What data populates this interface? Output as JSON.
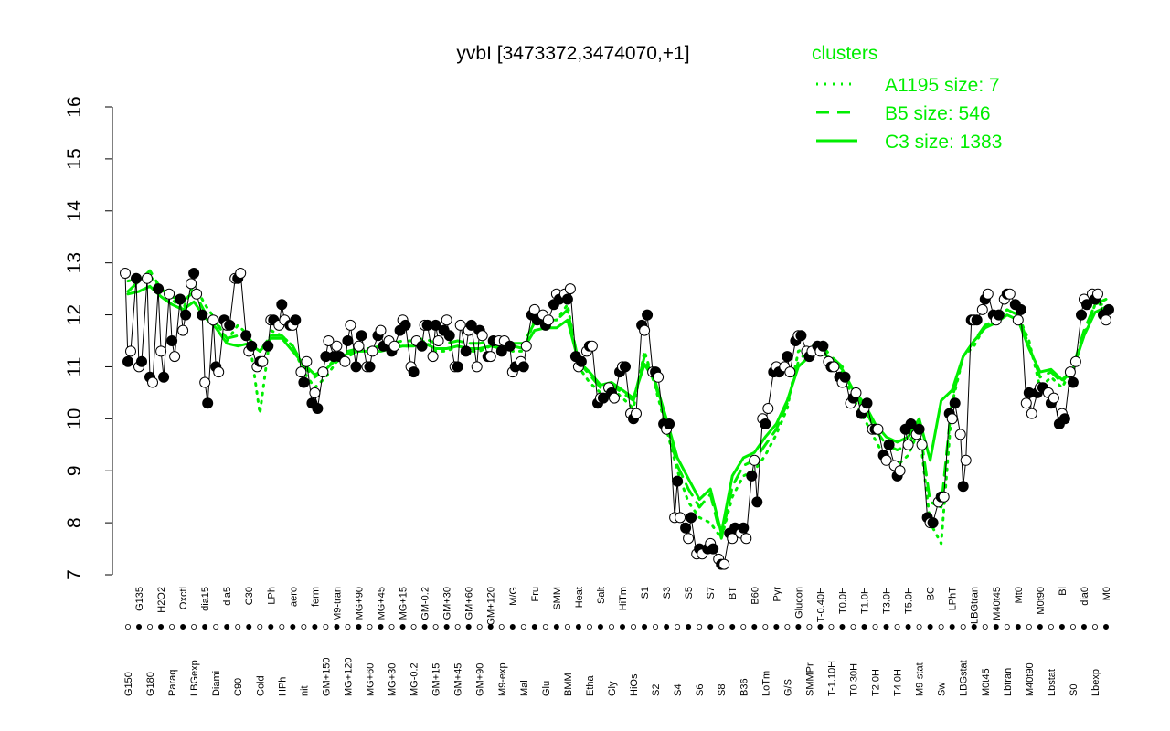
{
  "chart_data": {
    "type": "line",
    "title": "yvbI [3473372,3474070,+1]",
    "xlabel": "",
    "ylabel": "",
    "ylim": [
      7,
      16
    ],
    "y_ticks": [
      7,
      8,
      9,
      10,
      11,
      12,
      13,
      14,
      15,
      16
    ],
    "grid": false,
    "legend": {
      "title": "clusters",
      "placement": "top-right",
      "entries": [
        {
          "label": "A1195 size: 7",
          "style": "dotted"
        },
        {
          "label": "B5 size: 546",
          "style": "dashed"
        },
        {
          "label": "C3 size: 1383",
          "style": "solid"
        }
      ]
    },
    "x_tick_labels": [
      "G150",
      "G135",
      "G180",
      "H2O2",
      "Paraq",
      "Oxctl",
      "LBGexp",
      "dia15",
      "Diami",
      "dia5",
      "C90",
      "C30",
      "Cold",
      "LPh",
      "HPh",
      "aero",
      "nit",
      "ferm",
      "GM+150",
      "M9-tran",
      "MG+120",
      "MG+90",
      "MG+60",
      "MG+45",
      "MG+30",
      "MG+15",
      "MG-0.2",
      "GM-0.2",
      "GM+15",
      "GM+30",
      "GM+45",
      "GM+60",
      "GM+90",
      "GM+120",
      "M9-exp",
      "M/G",
      "Mal",
      "Fru",
      "Glu",
      "SMM",
      "BMM",
      "Heat",
      "Etha",
      "Salt",
      "Gly",
      "HiTm",
      "HiOs",
      "S1",
      "S2",
      "S3",
      "S4",
      "S5",
      "S6",
      "S7",
      "S8",
      "BT",
      "B36",
      "B60",
      "LoTm",
      "Pyr",
      "G/S",
      "Glucon",
      "SMMPr",
      "T-0.40H",
      "T-1.10H",
      "T0.0H",
      "T0.30H",
      "T1.0H",
      "T2.0H",
      "T3.0H",
      "T4.0H",
      "T5.0H",
      "M9-stat",
      "BC",
      "Sw",
      "LPhT",
      "LBGstat",
      "LBGtran",
      "M0t45",
      "M40t45",
      "Lbtran",
      "Mt0",
      "M40t90",
      "M0t90",
      "Lbstat",
      "Bl",
      "S0",
      "dia0",
      "Lbexp",
      "M0"
    ],
    "series": [
      {
        "name": "A1195 size: 7",
        "style": "dotted",
        "values": [
          12.65,
          12.7,
          12.75,
          12.5,
          12.3,
          12.1,
          12.6,
          12.2,
          11.9,
          11.5,
          11.8,
          11.6,
          10.1,
          11.7,
          11.6,
          11.4,
          10.9,
          10.6,
          10.8,
          11.1,
          11.2,
          11.3,
          11.3,
          11.3,
          11.4,
          11.4,
          11.4,
          11.5,
          11.3,
          11.3,
          11.4,
          11.3,
          11.3,
          11.4,
          11.4,
          11.3,
          11.3,
          11.9,
          11.9,
          11.9,
          12.2,
          11.0,
          10.7,
          10.5,
          10.6,
          10.4,
          10.2,
          11.3,
          10.6,
          9.8,
          9.0,
          8.4,
          8.1,
          8.0,
          7.7,
          8.5,
          8.9,
          9.0,
          9.3,
          9.7,
          10.2,
          11.3,
          11.4,
          11.4,
          11.1,
          10.9,
          10.4,
          10.0,
          9.6,
          9.2,
          9.1,
          9.3,
          9.8,
          8.0,
          7.6,
          10.3,
          11.2,
          11.4,
          11.8,
          11.9,
          12.1,
          12.0,
          11.5,
          10.6,
          10.8,
          10.6,
          11.0,
          11.6,
          12.2,
          12.2
        ]
      },
      {
        "name": "B5 size: 546",
        "style": "dashed",
        "values": [
          12.45,
          12.65,
          12.85,
          12.5,
          12.35,
          12.25,
          12.45,
          12.05,
          11.85,
          11.55,
          11.6,
          11.55,
          11.3,
          11.6,
          11.6,
          11.4,
          11.0,
          10.8,
          10.95,
          11.2,
          11.3,
          11.35,
          11.35,
          11.4,
          11.45,
          11.5,
          11.5,
          11.55,
          11.45,
          11.45,
          11.5,
          11.45,
          11.45,
          11.5,
          11.45,
          11.45,
          11.45,
          11.85,
          11.9,
          11.9,
          12.1,
          11.1,
          10.85,
          10.6,
          10.65,
          10.5,
          10.35,
          11.2,
          10.65,
          9.9,
          9.1,
          8.65,
          8.3,
          8.55,
          7.7,
          8.7,
          9.1,
          9.2,
          9.5,
          9.8,
          10.3,
          11.1,
          11.35,
          11.45,
          11.2,
          11.0,
          10.5,
          10.2,
          9.8,
          9.5,
          9.4,
          9.5,
          9.9,
          8.4,
          8.3,
          10.4,
          11.2,
          11.5,
          11.8,
          11.9,
          12.1,
          12.0,
          11.4,
          10.8,
          10.9,
          10.7,
          11.0,
          11.7,
          12.2,
          12.3
        ]
      },
      {
        "name": "C3 size: 1383",
        "style": "solid",
        "values": [
          12.4,
          12.45,
          12.55,
          12.35,
          12.2,
          12.1,
          12.25,
          11.95,
          11.75,
          11.45,
          11.4,
          11.45,
          11.3,
          11.55,
          11.55,
          11.3,
          11.05,
          10.85,
          10.95,
          11.15,
          11.25,
          11.3,
          11.3,
          11.3,
          11.35,
          11.4,
          11.4,
          11.45,
          11.35,
          11.35,
          11.4,
          11.35,
          11.35,
          11.4,
          11.35,
          11.4,
          11.35,
          11.7,
          11.75,
          11.75,
          11.9,
          11.1,
          10.9,
          10.65,
          10.7,
          10.55,
          10.4,
          11.05,
          10.7,
          10.0,
          9.25,
          8.85,
          8.45,
          8.65,
          7.8,
          8.9,
          9.25,
          9.35,
          9.65,
          9.9,
          10.35,
          11.0,
          11.2,
          11.3,
          11.15,
          10.95,
          10.55,
          10.3,
          9.9,
          9.65,
          9.55,
          9.65,
          10.0,
          9.2,
          10.35,
          10.55,
          11.2,
          11.5,
          11.75,
          11.85,
          12.0,
          11.9,
          11.35,
          10.9,
          10.95,
          10.75,
          10.95,
          11.6,
          12.05,
          12.15
        ]
      }
    ],
    "points": [
      [
        12.8,
        12.7,
        12.7,
        12.5,
        12.4,
        12.3,
        12.6,
        12.0,
        11.9,
        11.9,
        12.7,
        11.6,
        11.0,
        11.4,
        11.8,
        11.8,
        10.9,
        10.3,
        10.9,
        11.2,
        11.1,
        11.0,
        11.0,
        11.6,
        11.5,
        11.7,
        11.0,
        11.4,
        11.2,
        11.7,
        11.0,
        11.3,
        11.0,
        11.2,
        11.5,
        11.4,
        11.1,
        12.0,
        12.0,
        12.2,
        12.4,
        11.2,
        11.3,
        10.3,
        10.6,
        10.9,
        10.1,
        11.8,
        10.9,
        9.9,
        8.1,
        7.9,
        7.4,
        7.5,
        7.3,
        7.8,
        7.8,
        8.9,
        10.0,
        10.9,
        11.0,
        11.5,
        11.3,
        11.4,
        11.1,
        10.8,
        10.3,
        10.1,
        9.8,
        9.3,
        9.1,
        9.8,
        9.7,
        8.1,
        8.4,
        10.1,
        9.7,
        11.9,
        12.1,
        12.0,
        12.3,
        12.2,
        10.3,
        10.5,
        10.5,
        9.9,
        10.9,
        12.0,
        12.4,
        12.0
      ],
      [
        11.1,
        11.0,
        10.8,
        11.3,
        11.5,
        11.7,
        12.8,
        10.7,
        11.0,
        11.8,
        12.7,
        11.3,
        11.1,
        11.9,
        12.2,
        11.8,
        10.7,
        10.5,
        11.2,
        11.4,
        11.5,
        11.4,
        11.0,
        11.7,
        11.3,
        11.9,
        10.9,
        11.8,
        11.8,
        11.9,
        11.0,
        11.7,
        11.7,
        11.2,
        11.3,
        10.9,
        11.0,
        12.1,
        11.8,
        12.4,
        12.3,
        11.0,
        11.4,
        10.4,
        10.5,
        11.0,
        10.0,
        11.7,
        10.9,
        9.8,
        8.8,
        7.7,
        7.5,
        7.6,
        7.2,
        7.7,
        7.9,
        9.2,
        9.9,
        11.0,
        11.2,
        11.6,
        11.2,
        11.3,
        11.0,
        10.7,
        10.4,
        10.2,
        9.8,
        9.2,
        8.9,
        9.5,
        9.8,
        8.0,
        8.5,
        10.0,
        8.7,
        11.9,
        12.3,
        11.9,
        12.4,
        11.9,
        10.5,
        10.6,
        10.3,
        10.1,
        10.7,
        12.3,
        12.3,
        11.9
      ],
      [
        11.3,
        11.1,
        10.7,
        10.8,
        11.2,
        12.0,
        12.4,
        10.3,
        10.9,
        11.8,
        12.8,
        11.4,
        11.1,
        11.9,
        11.9,
        11.9,
        11.1,
        10.2,
        11.5,
        11.2,
        11.8,
        11.6,
        11.3,
        11.4,
        11.4,
        11.8,
        11.5,
        11.8,
        11.5,
        11.6,
        11.8,
        11.8,
        11.6,
        11.5,
        11.5,
        11.0,
        11.4,
        11.9,
        11.9,
        12.3,
        12.5,
        11.1,
        11.4,
        10.4,
        10.4,
        11.0,
        10.1,
        12.0,
        10.8,
        9.9,
        8.1,
        8.1,
        7.4,
        7.5,
        7.2,
        7.9,
        7.7,
        8.4,
        10.2,
        10.9,
        10.9,
        11.6,
        11.3,
        11.4,
        11.0,
        10.8,
        10.5,
        10.3,
        9.8,
        9.5,
        9.0,
        9.9,
        9.5,
        8.0,
        8.5,
        10.3,
        9.2,
        11.9,
        12.4,
        12.0,
        12.4,
        12.1,
        10.1,
        10.6,
        10.4,
        10.0,
        11.1,
        12.2,
        12.4,
        12.1
      ]
    ]
  }
}
